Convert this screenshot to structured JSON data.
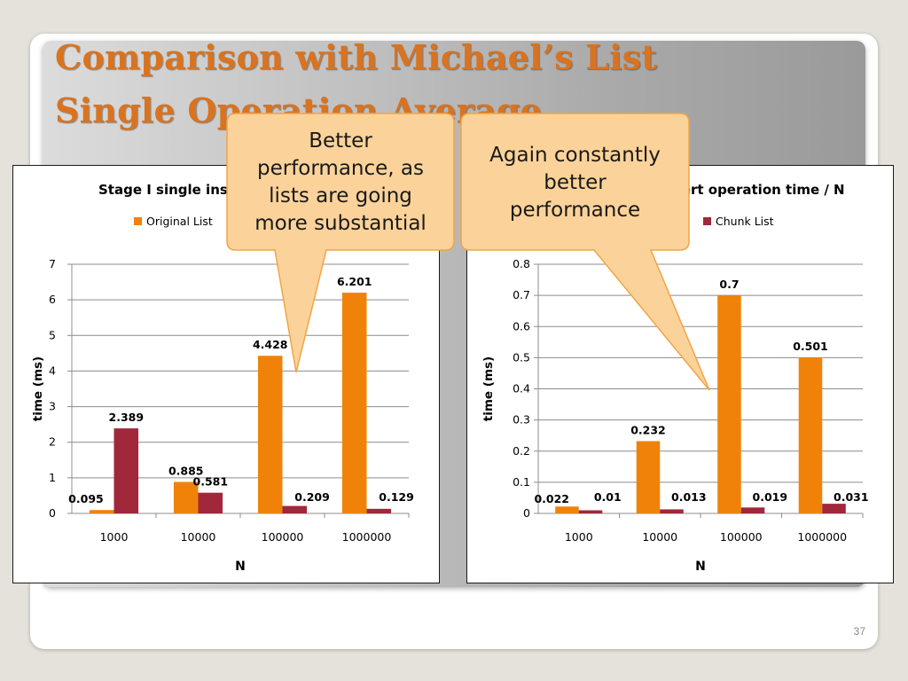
{
  "slide": {
    "title_line1": "Comparison with Michael’s List",
    "title_line2": "Single Operation Average",
    "page_number": "37"
  },
  "callouts": [
    {
      "lines": [
        "Better",
        "performance, as",
        "lists are going",
        "more substantial"
      ]
    },
    {
      "lines": [
        "Again constantly",
        "better",
        "performance"
      ]
    }
  ],
  "colors": {
    "original": "#f0820a",
    "chunk": "#a0283a",
    "title": "#d9731f",
    "callout_fill": "#fbd39a",
    "callout_stroke": "#f2a446"
  },
  "chart_data": [
    {
      "type": "bar",
      "title": "Stage I single insert operation time / N",
      "legend": [
        "Original List",
        "Chunk List"
      ],
      "legend_position": "top",
      "xlabel": "N",
      "ylabel": "time (ms)",
      "categories": [
        "1000",
        "10000",
        "100000",
        "1000000"
      ],
      "series": [
        {
          "name": "Original List",
          "values": [
            0.095,
            0.885,
            4.428,
            6.201
          ],
          "labels": [
            "0.095",
            "0.885",
            "4.428",
            "6.201"
          ]
        },
        {
          "name": "Chunk List",
          "values": [
            2.389,
            0.581,
            0.209,
            0.129
          ],
          "labels": [
            "2.389",
            "0.581",
            "0.209",
            "0.129"
          ]
        }
      ],
      "ylim": [
        0,
        7
      ],
      "yticks": [
        "0",
        "1",
        "2",
        "3",
        "4",
        "5",
        "6",
        "7"
      ],
      "grid": true
    },
    {
      "type": "bar",
      "title": "Stage I single insert operation time / N",
      "legend": [
        "Original List",
        "Chunk List"
      ],
      "legend_position": "top",
      "xlabel": "N",
      "ylabel": "time (ms)",
      "categories": [
        "1000",
        "10000",
        "100000",
        "1000000"
      ],
      "series": [
        {
          "name": "Original List",
          "values": [
            0.022,
            0.232,
            0.7,
            0.501
          ],
          "labels": [
            "0.022",
            "0.232",
            "0.7",
            "0.501"
          ]
        },
        {
          "name": "Chunk List",
          "values": [
            0.01,
            0.013,
            0.019,
            0.031
          ],
          "labels": [
            "0.01",
            "0.013",
            "0.019",
            "0.031"
          ]
        }
      ],
      "ylim": [
        0,
        0.8
      ],
      "yticks": [
        "0",
        "0.1",
        "0.2",
        "0.3",
        "0.4",
        "0.5",
        "0.6",
        "0.7",
        "0.8"
      ],
      "grid": true
    }
  ]
}
